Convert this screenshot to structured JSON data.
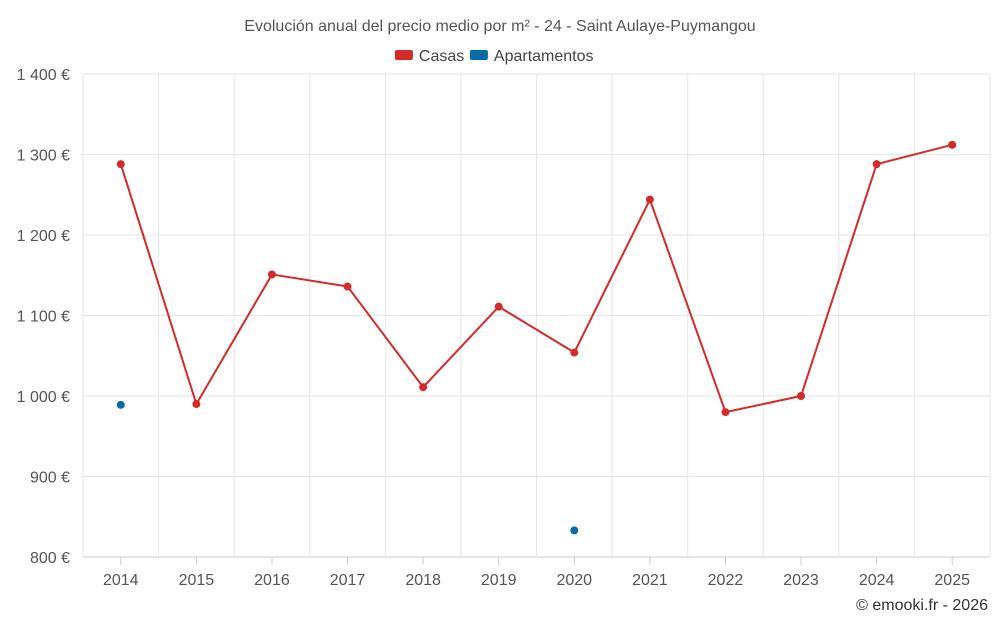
{
  "chart_data": {
    "type": "line",
    "title": "Evolución anual del precio medio por m² - 24 - Saint Aulaye-Puymangou",
    "categories": [
      "2014",
      "2015",
      "2016",
      "2017",
      "2018",
      "2019",
      "2020",
      "2021",
      "2022",
      "2023",
      "2024",
      "2025"
    ],
    "series": [
      {
        "name": "Casas",
        "color": "#d42a2a",
        "values": [
          1288,
          990,
          1151,
          1136,
          1011,
          1111,
          1054,
          1244,
          980,
          1000,
          1288,
          1312
        ]
      },
      {
        "name": "Apartamentos",
        "color": "#0a6aa6",
        "values": [
          989,
          null,
          null,
          null,
          null,
          null,
          833,
          null,
          null,
          null,
          null,
          null
        ]
      }
    ],
    "ylim": [
      800,
      1400
    ],
    "yticks": [
      800,
      900,
      1000,
      1100,
      1200,
      1300,
      1400
    ],
    "ytick_labels": [
      "800 €",
      "900 €",
      "1 000 €",
      "1 100 €",
      "1 200 €",
      "1 300 €",
      "1 400 €"
    ],
    "grid": true,
    "legend_position": "top-center",
    "xlabel": "",
    "ylabel": ""
  },
  "credit": "© emooki.fr - 2026"
}
